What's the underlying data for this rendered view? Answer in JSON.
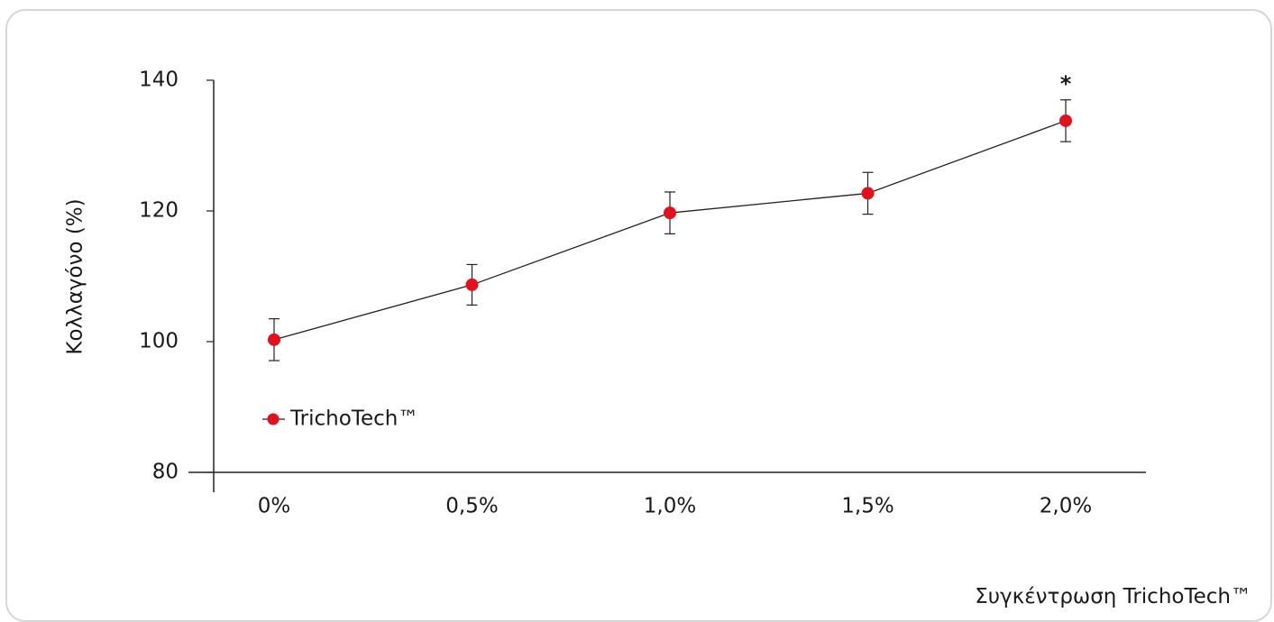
{
  "chart_data": {
    "type": "line",
    "title": "",
    "xlabel": "Συγκέντρωση TrichoTech™",
    "ylabel": "Κολλαγόνο (%)",
    "ylim": [
      80,
      140
    ],
    "yticks": [
      80,
      100,
      120,
      140
    ],
    "categories": [
      "0%",
      "0,5%",
      "1,0%",
      "1,5%",
      "2,0%"
    ],
    "series": [
      {
        "name": "TrichoTech™",
        "color": "#e3101d",
        "values": [
          100.3,
          108.7,
          119.7,
          122.7,
          133.8
        ],
        "error": [
          3.2,
          3.1,
          3.2,
          3.2,
          3.2
        ],
        "annotations": [
          "",
          "",
          "",
          "",
          "*"
        ]
      }
    ],
    "legend_position": "bottom-left",
    "grid": false
  }
}
